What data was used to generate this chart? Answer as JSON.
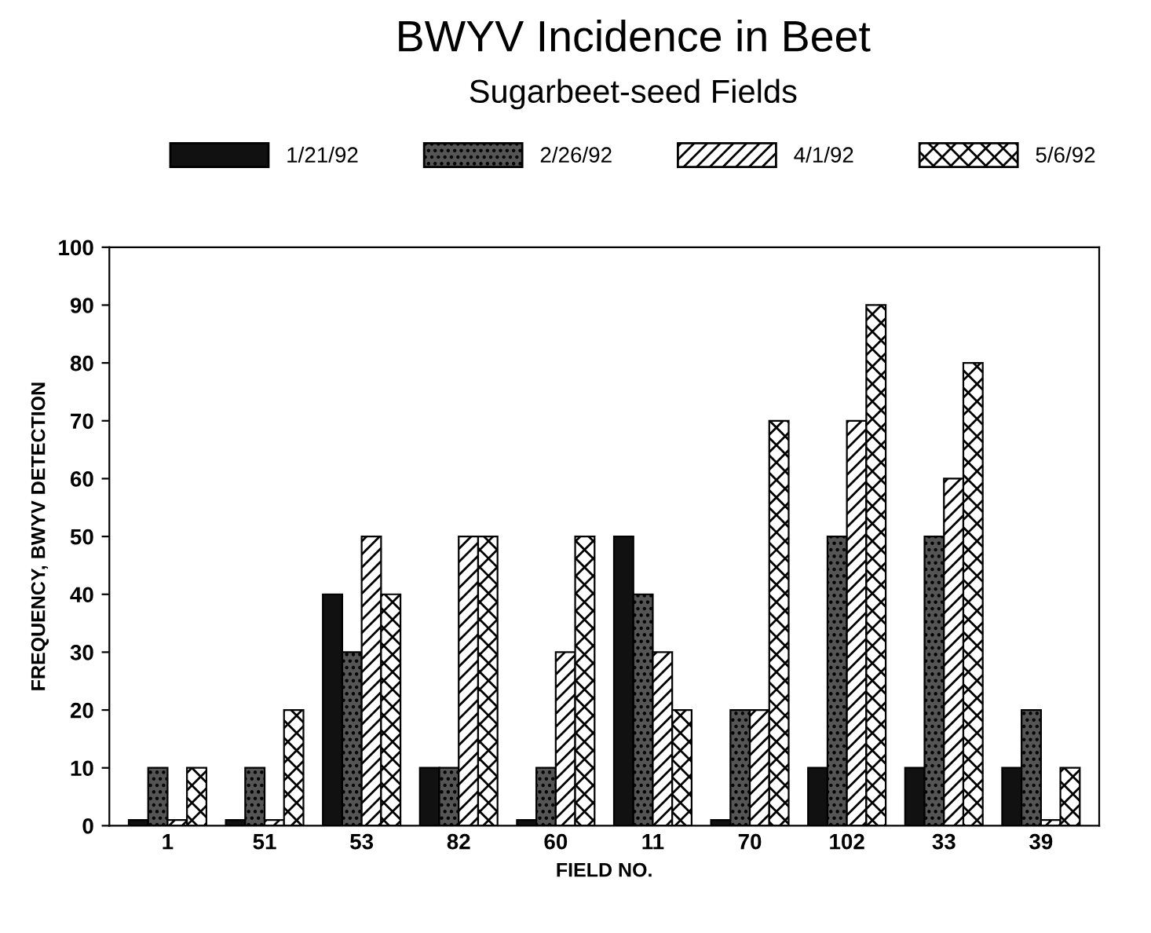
{
  "chart_data": {
    "type": "bar",
    "title": "BWYV Incidence in Beet",
    "subtitle": "Sugarbeet-seed Fields",
    "xlabel": "FIELD NO.",
    "ylabel": "FREQUENCY, BWYV DETECTION",
    "categories": [
      "1",
      "51",
      "53",
      "82",
      "60",
      "11",
      "70",
      "102",
      "33",
      "39"
    ],
    "series": [
      {
        "name": "1/21/92",
        "color": "#111111",
        "values": [
          1,
          1,
          40,
          10,
          1,
          50,
          1,
          10,
          10,
          10
        ]
      },
      {
        "name": "2/26/92",
        "color": "#555555",
        "values": [
          10,
          10,
          30,
          10,
          10,
          40,
          20,
          50,
          50,
          20
        ]
      },
      {
        "name": "4/1/92",
        "color": "#ffffff",
        "values": [
          1,
          1,
          50,
          50,
          30,
          30,
          20,
          70,
          60,
          1
        ]
      },
      {
        "name": "5/6/92",
        "color": "#ffffff",
        "values": [
          10,
          20,
          40,
          50,
          50,
          20,
          70,
          90,
          80,
          10
        ]
      }
    ],
    "ylim": [
      0,
      100
    ],
    "yticks": [
      0,
      10,
      20,
      30,
      40,
      50,
      60,
      70,
      80,
      90,
      100
    ],
    "legend": "top",
    "grid": false
  }
}
